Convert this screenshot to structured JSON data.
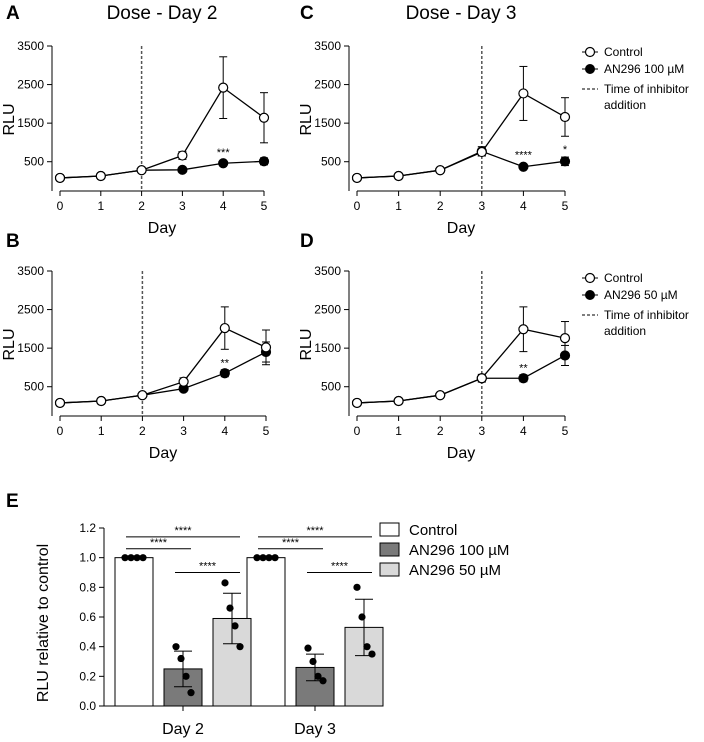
{
  "legends": {
    "top": {
      "control": "Control",
      "drug": "AN296 100 µM",
      "inhibitor_line1": "Time of inhibitor",
      "inhibitor_line2": "addition"
    },
    "middle": {
      "control": "Control",
      "drug": "AN296 50 µM",
      "inhibitor_line1": "Time of inhibitor",
      "inhibitor_line2": "addition"
    },
    "bar": [
      "Control",
      "AN296 100 µM",
      "AN296 50 µM"
    ]
  },
  "colors": {
    "control_bar": "#ffffff",
    "dose100_bar": "#7a7a7a",
    "dose50_bar": "#d9d9d9",
    "line": "#000000"
  },
  "chart_data": [
    {
      "panel": "A",
      "type": "line",
      "title": "Dose - Day 2",
      "xlabel": "Day",
      "ylabel": "RLU",
      "x": [
        0,
        1,
        2,
        3,
        4,
        5
      ],
      "xticks": [
        "0",
        "1",
        "2",
        "3",
        "4",
        "5"
      ],
      "ylim": [
        0,
        3500
      ],
      "yticks": [
        500,
        1500,
        2500,
        3500
      ],
      "inhibitor_day": 2,
      "series": [
        {
          "name": "Control",
          "marker": "open",
          "values": [
            80,
            130,
            280,
            660,
            2420,
            1640
          ],
          "errors": [
            0,
            0,
            0,
            100,
            800,
            650
          ]
        },
        {
          "name": "AN296 100 µM",
          "marker": "filled",
          "values": [
            80,
            130,
            280,
            290,
            460,
            510
          ],
          "errors": [
            0,
            0,
            0,
            0,
            40,
            90
          ]
        }
      ],
      "annotations": [
        {
          "x": 4,
          "y": 650,
          "text": "***"
        }
      ]
    },
    {
      "panel": "C",
      "type": "line",
      "title": "Dose - Day 3",
      "xlabel": "Day",
      "ylabel": "RLU",
      "x": [
        0,
        1,
        2,
        3,
        4,
        5
      ],
      "xticks": [
        "0",
        "1",
        "2",
        "3",
        "4",
        "5"
      ],
      "ylim": [
        0,
        3500
      ],
      "yticks": [
        500,
        1500,
        2500,
        3500
      ],
      "inhibitor_day": 3,
      "series": [
        {
          "name": "Control",
          "marker": "open",
          "values": [
            80,
            130,
            280,
            750,
            2270,
            1660
          ],
          "errors": [
            0,
            0,
            0,
            100,
            700,
            500
          ]
        },
        {
          "name": "AN296 100 µM",
          "marker": "filled",
          "values": [
            80,
            130,
            280,
            770,
            370,
            510
          ],
          "errors": [
            0,
            0,
            0,
            120,
            40,
            110
          ]
        }
      ],
      "annotations": [
        {
          "x": 4,
          "y": 580,
          "text": "****"
        },
        {
          "x": 5,
          "y": 730,
          "text": "*"
        }
      ]
    },
    {
      "panel": "B",
      "type": "line",
      "title": "",
      "xlabel": "Day",
      "ylabel": "RLU",
      "x": [
        0,
        1,
        2,
        3,
        4,
        5
      ],
      "xticks": [
        "0",
        "1",
        "2",
        "3",
        "4",
        "5"
      ],
      "ylim": [
        0,
        3500
      ],
      "yticks": [
        500,
        1500,
        2500,
        3500
      ],
      "inhibitor_day": 2,
      "series": [
        {
          "name": "Control",
          "marker": "open",
          "values": [
            80,
            130,
            280,
            630,
            2020,
            1520
          ],
          "errors": [
            0,
            0,
            0,
            100,
            550,
            450
          ]
        },
        {
          "name": "AN296 50 µM",
          "marker": "filled",
          "values": [
            80,
            130,
            280,
            450,
            850,
            1400
          ],
          "errors": [
            0,
            0,
            0,
            40,
            90,
            260
          ]
        }
      ],
      "annotations": [
        {
          "x": 4,
          "y": 1020,
          "text": "**"
        }
      ]
    },
    {
      "panel": "D",
      "type": "line",
      "title": "",
      "xlabel": "Day",
      "ylabel": "RLU",
      "x": [
        0,
        1,
        2,
        3,
        4,
        5
      ],
      "xticks": [
        "0",
        "1",
        "2",
        "3",
        "4",
        "5"
      ],
      "ylim": [
        0,
        3500
      ],
      "yticks": [
        500,
        1500,
        2500,
        3500
      ],
      "inhibitor_day": 3,
      "series": [
        {
          "name": "Control",
          "marker": "open",
          "values": [
            80,
            130,
            280,
            720,
            1990,
            1760
          ],
          "errors": [
            0,
            0,
            0,
            100,
            580,
            430
          ]
        },
        {
          "name": "AN296 50 µM",
          "marker": "filled",
          "values": [
            80,
            130,
            280,
            720,
            720,
            1310
          ],
          "errors": [
            0,
            0,
            0,
            0,
            90,
            260
          ]
        }
      ],
      "annotations": [
        {
          "x": 4,
          "y": 900,
          "text": "**"
        }
      ]
    },
    {
      "panel": "E",
      "type": "bar",
      "title": "",
      "xlabel": "",
      "ylabel": "RLU relative to control",
      "categories": [
        "Day 2",
        "Day 3"
      ],
      "ylim": [
        0,
        1.2
      ],
      "yticks": [
        0.0,
        0.2,
        0.4,
        0.6,
        0.8,
        1.0,
        1.2
      ],
      "ytick_labels": [
        "0.0",
        "0.2",
        "0.4",
        "0.6",
        "0.8",
        "1.0",
        "1.2"
      ],
      "series": [
        {
          "name": "Control",
          "values": [
            1.0,
            1.0
          ],
          "errors": [
            0,
            0
          ],
          "points": [
            [
              1.0,
              1.0,
              1.0,
              1.0
            ],
            [
              1.0,
              1.0,
              1.0,
              1.0
            ]
          ]
        },
        {
          "name": "AN296 100 µM",
          "values": [
            0.25,
            0.26
          ],
          "errors": [
            0.12,
            0.09
          ],
          "points": [
            [
              0.4,
              0.32,
              0.2,
              0.09
            ],
            [
              0.39,
              0.3,
              0.2,
              0.17
            ]
          ]
        },
        {
          "name": "AN296 50 µM",
          "values": [
            0.59,
            0.53
          ],
          "errors": [
            0.17,
            0.19
          ],
          "points": [
            [
              0.83,
              0.66,
              0.54,
              0.4
            ],
            [
              0.8,
              0.6,
              0.4,
              0.35
            ]
          ]
        }
      ],
      "significance": [
        {
          "category": 0,
          "from": 0,
          "to": 1,
          "y": 1.06,
          "text": "****"
        },
        {
          "category": 0,
          "from": 0,
          "to": 2,
          "y": 1.14,
          "text": "****"
        },
        {
          "category": 0,
          "from": 1,
          "to": 2,
          "y": 0.9,
          "text": "****"
        },
        {
          "category": 1,
          "from": 0,
          "to": 1,
          "y": 1.06,
          "text": "****"
        },
        {
          "category": 1,
          "from": 0,
          "to": 2,
          "y": 1.14,
          "text": "****"
        },
        {
          "category": 1,
          "from": 1,
          "to": 2,
          "y": 0.9,
          "text": "****"
        }
      ]
    }
  ]
}
